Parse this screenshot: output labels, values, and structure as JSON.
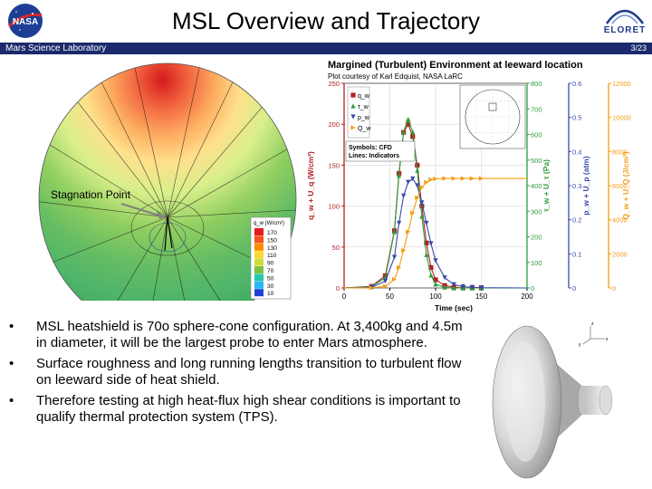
{
  "header": {
    "title": "MSL Overview and Trajectory",
    "subtitle_bar_left": "Mars Science Laboratory",
    "page_number": "3/23",
    "nasa_logo_text": "NASA",
    "eloret_logo_text": "ELORET"
  },
  "left_figure": {
    "annotation": "Stagnation Point",
    "legend_title": "q_w (W/cm²)",
    "legend_levels": [
      "170",
      "150",
      "130",
      "110",
      "90",
      "70",
      "50",
      "30",
      "10"
    ],
    "legend_colors": [
      "#e41a1c",
      "#f4511e",
      "#fb8c00",
      "#fdd835",
      "#cddc39",
      "#7cc242",
      "#26c6a6",
      "#29b6f6",
      "#1e40d8"
    ]
  },
  "chart_data": {
    "type": "line",
    "title": "Margined (Turbulent) Environment at leeward location",
    "credit": "Plot courtesy of Karl Edquist, NASA LaRC",
    "xlabel": "Time (sec)",
    "x_ticks": [
      "0",
      "50",
      "100",
      "150",
      "200"
    ],
    "xlim": [
      0,
      200
    ],
    "axes": [
      {
        "label": "q_w + U_q (W/cm²)",
        "color": "#b22222",
        "ticks": [
          "0",
          "50",
          "100",
          "150",
          "200",
          "250"
        ],
        "range": [
          0,
          250
        ]
      },
      {
        "label": "τ_w + U_τ (Pa)",
        "color": "#2e9d3a",
        "ticks": [
          "0",
          "100",
          "200",
          "300",
          "400",
          "500",
          "600",
          "700",
          "800"
        ],
        "range": [
          0,
          800
        ]
      },
      {
        "label": "p_w + U_p (atm)",
        "color": "#3949ab",
        "ticks": [
          "0",
          "0.1",
          "0.2",
          "0.3",
          "0.4",
          "0.5",
          "0.6"
        ],
        "range": [
          0,
          0.6
        ]
      },
      {
        "label": "Q_w + U_Q (J/cm²)",
        "color": "#f39c12",
        "ticks": [
          "0",
          "2000",
          "4000",
          "6000",
          "8000",
          "10000",
          "12000"
        ],
        "range": [
          0,
          12000
        ]
      }
    ],
    "legend": [
      "q_w",
      "τ_w",
      "p_w",
      "Q_w"
    ],
    "symbols_note": [
      "Symbols: CFD",
      "Lines: Indicators"
    ],
    "series": [
      {
        "name": "q_w",
        "color": "#b22222",
        "marker": "square",
        "x": [
          0,
          30,
          45,
          55,
          60,
          65,
          70,
          75,
          80,
          85,
          90,
          95,
          100,
          110,
          120,
          130,
          140,
          150,
          200
        ],
        "y": [
          0,
          2,
          15,
          70,
          140,
          190,
          200,
          185,
          150,
          100,
          55,
          25,
          10,
          3,
          1,
          0,
          0,
          0,
          0
        ]
      },
      {
        "name": "τ_w",
        "color": "#2e9d3a",
        "marker": "triangle-up",
        "x": [
          0,
          30,
          45,
          55,
          60,
          65,
          70,
          75,
          80,
          85,
          90,
          95,
          100,
          110,
          120,
          130,
          140,
          150,
          200
        ],
        "y": [
          0,
          5,
          40,
          220,
          440,
          610,
          660,
          610,
          460,
          280,
          130,
          50,
          15,
          3,
          0,
          0,
          0,
          0,
          0
        ]
      },
      {
        "name": "p_w",
        "color": "#3949ab",
        "marker": "triangle-down",
        "x": [
          0,
          30,
          45,
          55,
          60,
          65,
          70,
          75,
          80,
          85,
          90,
          95,
          100,
          110,
          120,
          130,
          140,
          150,
          200
        ],
        "y": [
          0,
          0.002,
          0.02,
          0.09,
          0.19,
          0.27,
          0.31,
          0.32,
          0.3,
          0.25,
          0.19,
          0.13,
          0.08,
          0.03,
          0.01,
          0.004,
          0.002,
          0.001,
          0
        ]
      },
      {
        "name": "Q_w",
        "color": "#f39c12",
        "marker": "triangle-right",
        "x": [
          0,
          30,
          45,
          55,
          60,
          65,
          70,
          75,
          80,
          85,
          90,
          95,
          100,
          110,
          120,
          130,
          140,
          150,
          200
        ],
        "y": [
          0,
          10,
          100,
          500,
          1200,
          2200,
          3300,
          4400,
          5300,
          5900,
          6200,
          6350,
          6400,
          6420,
          6420,
          6420,
          6420,
          6420,
          6420
        ]
      }
    ],
    "grid": true,
    "legend_placement": "top-left"
  },
  "bullets": [
    "MSL heatshield is 70o sphere-cone configuration. At 3,400kg and 4.5m in diameter, it will be the largest probe to enter Mars atmosphere.",
    "Surface roughness and long running lengths transition to turbulent flow on leeward side of heat shield.",
    "Therefore testing at high heat-flux high shear conditions is important to qualify thermal protection system (TPS)."
  ],
  "cone_figure": {
    "axis_labels": [
      "x",
      "y",
      "z"
    ]
  }
}
